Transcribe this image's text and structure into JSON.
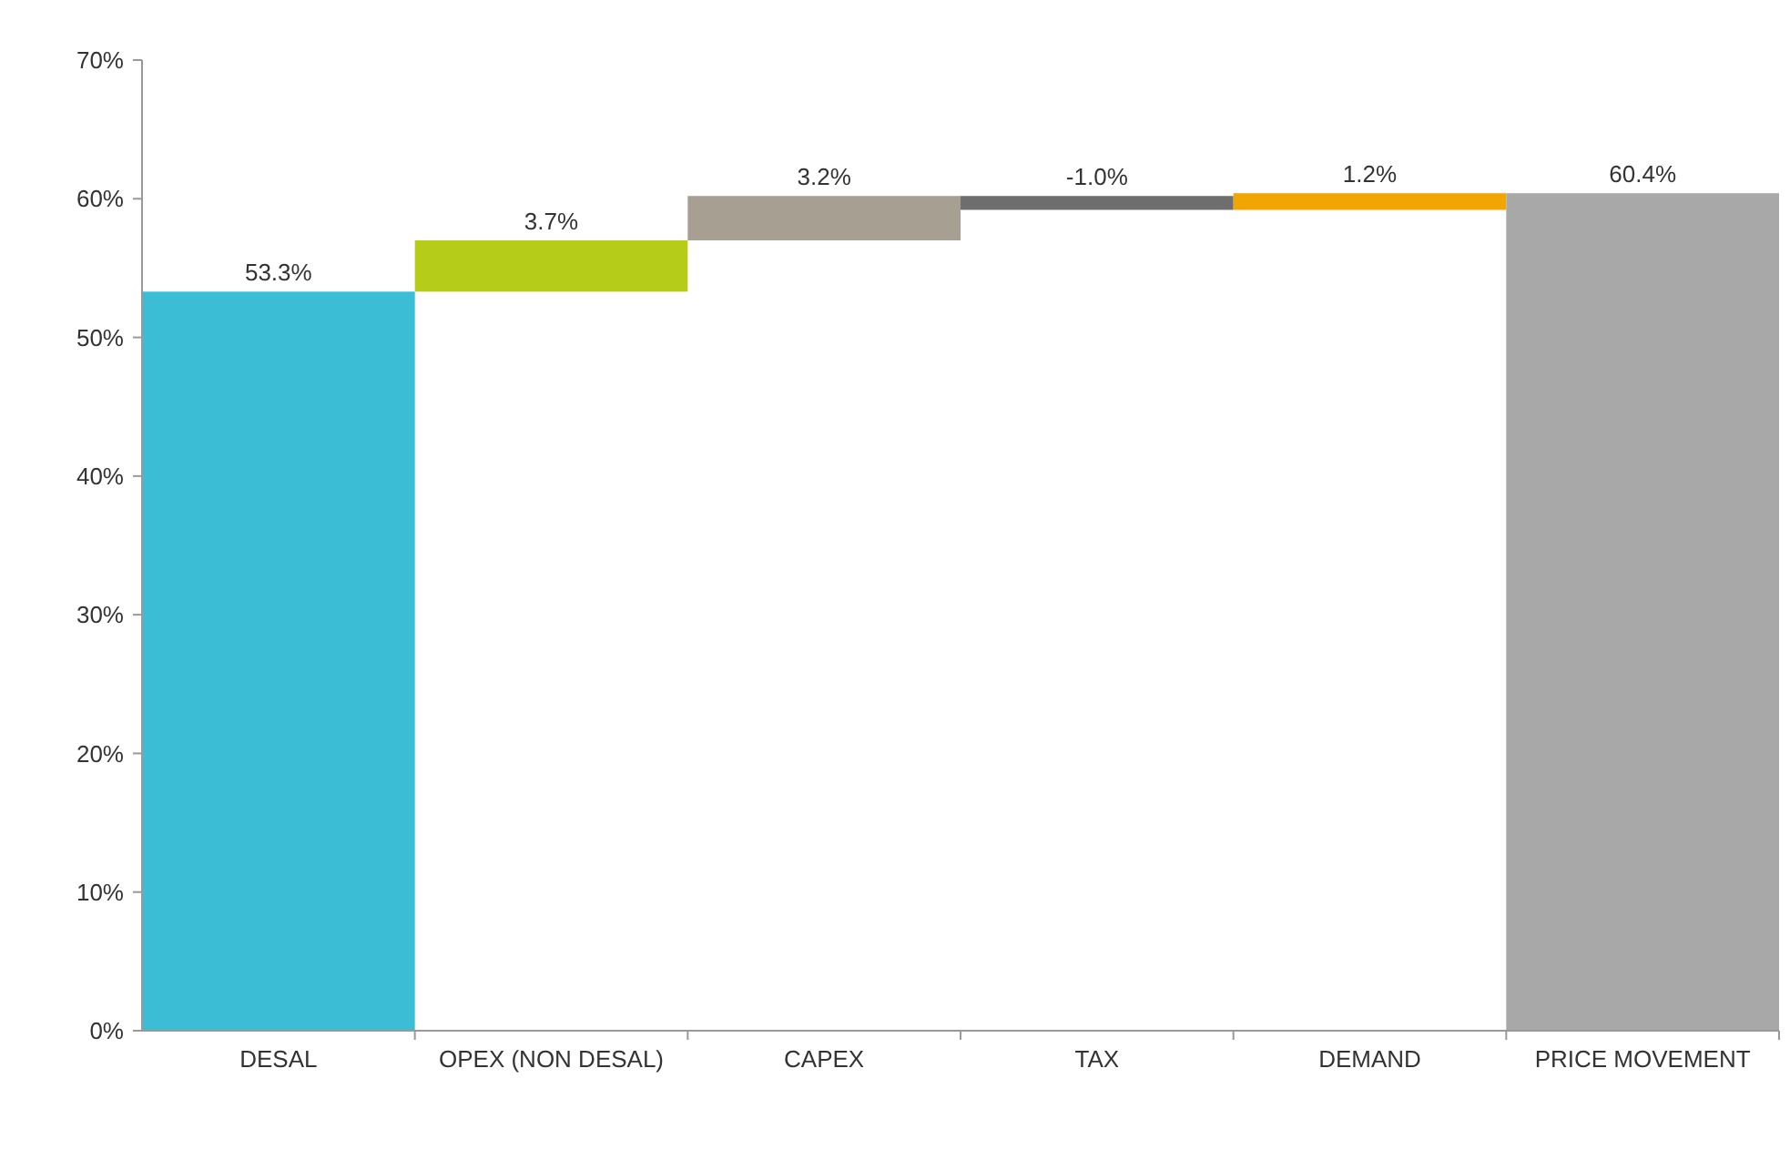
{
  "chart_data": {
    "type": "bar",
    "categories": [
      "DESAL",
      "OPEX (NON DESAL)",
      "CAPEX",
      "TAX",
      "DEMAND",
      "PRICE MOVEMENT"
    ],
    "values": [
      53.3,
      3.7,
      3.2,
      -1.0,
      1.2,
      60.4
    ],
    "base": [
      0,
      53.3,
      57.0,
      60.2,
      59.2,
      0
    ],
    "colors": [
      "#3bbdd6",
      "#b5cc18",
      "#a89f93",
      "#6e6e6e",
      "#f0a500",
      "#a8a8a8"
    ],
    "value_labels": [
      "53.3%",
      "3.7%",
      "3.2%",
      "-1.0%",
      "1.2%",
      "60.4%"
    ],
    "ylim": [
      0,
      70
    ],
    "yticks": [
      {
        "value": 0,
        "label": "0%"
      },
      {
        "value": 10,
        "label": "10%"
      },
      {
        "value": 20,
        "label": "20%"
      },
      {
        "value": 30,
        "label": "30%"
      },
      {
        "value": 40,
        "label": "40%"
      },
      {
        "value": 50,
        "label": "50%"
      },
      {
        "value": 60,
        "label": "60%"
      },
      {
        "value": 70,
        "label": "70%"
      }
    ],
    "grid": false
  }
}
